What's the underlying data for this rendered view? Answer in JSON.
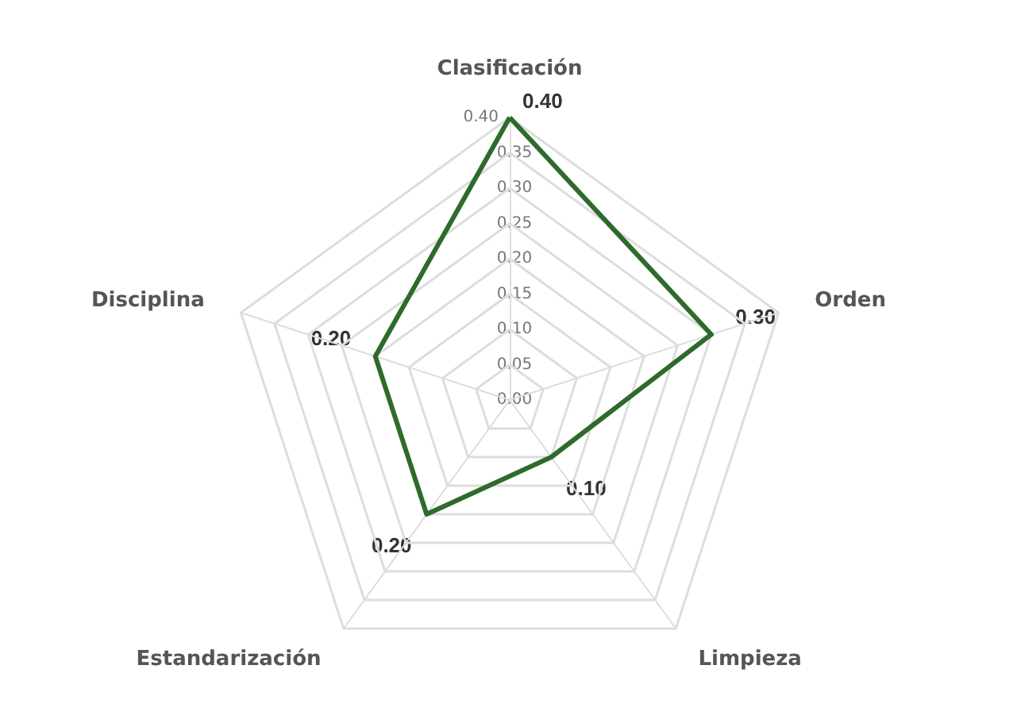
{
  "chart_data": {
    "type": "radar",
    "categories": [
      "Clasificación",
      "Orden",
      "Limpieza",
      "Estandarización",
      "Disciplina"
    ],
    "series": [
      {
        "color": "#2e6b2a",
        "values": [
          0.4,
          0.3,
          0.1,
          0.2,
          0.2
        ],
        "value_labels": [
          "0.40",
          "0.30",
          "0.10",
          "0.20",
          "0.20"
        ]
      }
    ],
    "ylim": [
      0,
      0.4
    ],
    "yticks": [
      {
        "value": 0,
        "label": "0.00"
      },
      {
        "value": 0.05,
        "label": "0.05"
      },
      {
        "value": 0.1,
        "label": "0.10"
      },
      {
        "value": 0.15,
        "label": "0.15"
      },
      {
        "value": 0.2,
        "label": "0.20"
      },
      {
        "value": 0.25,
        "label": "0.25"
      },
      {
        "value": 0.3,
        "label": "0.30"
      },
      {
        "value": 0.35,
        "label": "0.35"
      },
      {
        "value": 0.4,
        "label": "0.40"
      }
    ],
    "grid": true
  }
}
